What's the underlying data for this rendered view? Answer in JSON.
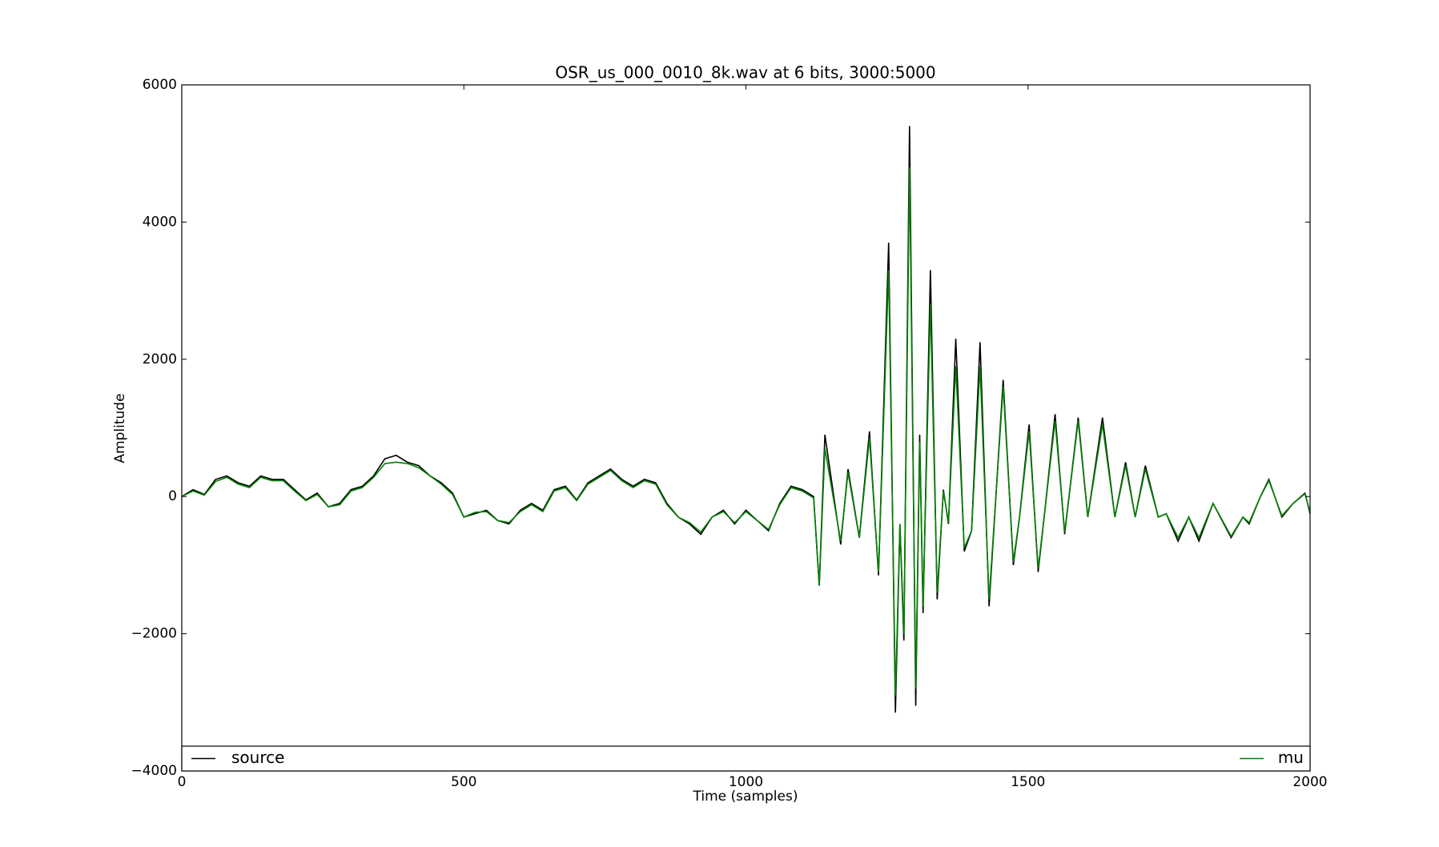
{
  "chart_data": {
    "type": "line",
    "title": "OSR_us_000_0010_8k.wav at 6 bits, 3000:5000",
    "xlabel": "Time (samples)",
    "ylabel": "Amplitude",
    "x": [
      0,
      20,
      40,
      60,
      80,
      100,
      120,
      140,
      160,
      180,
      200,
      220,
      240,
      260,
      280,
      300,
      320,
      340,
      360,
      380,
      400,
      420,
      440,
      460,
      480,
      500,
      520,
      540,
      560,
      580,
      600,
      620,
      640,
      660,
      680,
      700,
      720,
      740,
      760,
      780,
      800,
      820,
      840,
      860,
      880,
      900,
      920,
      940,
      960,
      980,
      1000,
      1020,
      1040,
      1060,
      1080,
      1100,
      1120,
      1130,
      1140,
      1168,
      1181,
      1201,
      1219,
      1235,
      1253,
      1265,
      1273,
      1280,
      1290,
      1301,
      1308,
      1314,
      1327,
      1339,
      1350,
      1359,
      1372,
      1387,
      1400,
      1415,
      1431,
      1456,
      1474,
      1485,
      1502,
      1518,
      1530,
      1548,
      1565,
      1589,
      1606,
      1632,
      1654,
      1673,
      1690,
      1708,
      1731,
      1745,
      1766,
      1785,
      1803,
      1828,
      1860,
      1881,
      1892,
      1912,
      1927,
      1950,
      1970,
      1991,
      2000
    ],
    "series": [
      {
        "name": "source",
        "color": "#000000",
        "values": [
          0,
          100,
          30,
          250,
          300,
          200,
          150,
          300,
          250,
          250,
          100,
          -50,
          50,
          -150,
          -100,
          100,
          150,
          300,
          550,
          600,
          500,
          450,
          300,
          200,
          50,
          -300,
          -250,
          -200,
          -350,
          -400,
          -200,
          -100,
          -200,
          100,
          150,
          -50,
          200,
          300,
          400,
          250,
          150,
          250,
          200,
          -100,
          -300,
          -400,
          -550,
          -300,
          -200,
          -400,
          -200,
          -350,
          -500,
          -100,
          150,
          100,
          0,
          -1300,
          900,
          -700,
          400,
          -600,
          950,
          -1150,
          3700,
          -3150,
          -400,
          -2100,
          5400,
          -3050,
          900,
          -1700,
          3300,
          -1500,
          100,
          -400,
          2300,
          -800,
          -500,
          2250,
          -1600,
          1700,
          -1000,
          -300,
          1050,
          -1100,
          -200,
          1200,
          -550,
          1150,
          -300,
          1150,
          -300,
          500,
          -300,
          450,
          -300,
          -250,
          -650,
          -300,
          -650,
          -100,
          -600,
          -300,
          -400,
          0,
          250,
          -300,
          -100,
          50,
          -250
        ]
      },
      {
        "name": "mu",
        "color": "#008000",
        "values": [
          0,
          80,
          20,
          220,
          280,
          180,
          130,
          280,
          230,
          230,
          80,
          -60,
          30,
          -150,
          -120,
          80,
          130,
          280,
          480,
          500,
          480,
          420,
          300,
          180,
          30,
          -300,
          -230,
          -220,
          -350,
          -380,
          -220,
          -120,
          -220,
          80,
          130,
          -60,
          180,
          280,
          380,
          230,
          130,
          230,
          180,
          -120,
          -300,
          -380,
          -520,
          -300,
          -220,
          -380,
          -220,
          -350,
          -480,
          -120,
          130,
          80,
          -20,
          -1300,
          700,
          -650,
          350,
          -600,
          850,
          -1100,
          3300,
          -2900,
          -400,
          -2000,
          4800,
          -2800,
          800,
          -1600,
          2800,
          -1400,
          80,
          -380,
          1900,
          -750,
          -500,
          1900,
          -1500,
          1600,
          -950,
          -300,
          950,
          -1050,
          -200,
          1100,
          -520,
          1100,
          -300,
          1050,
          -300,
          450,
          -300,
          400,
          -300,
          -250,
          -600,
          -300,
          -600,
          -100,
          -580,
          -300,
          -380,
          0,
          230,
          -280,
          -100,
          40,
          -230
        ]
      }
    ],
    "xlim": [
      0,
      2000
    ],
    "xticks": [
      0,
      500,
      1000,
      1500,
      2000
    ],
    "ylim": [
      -4000,
      6000
    ],
    "yticks": [
      {
        "value": -4000,
        "label": "−4000"
      },
      {
        "value": -2000,
        "label": "−2000"
      },
      0,
      2000,
      4000,
      6000
    ],
    "grid": false,
    "legend": "lower center"
  }
}
